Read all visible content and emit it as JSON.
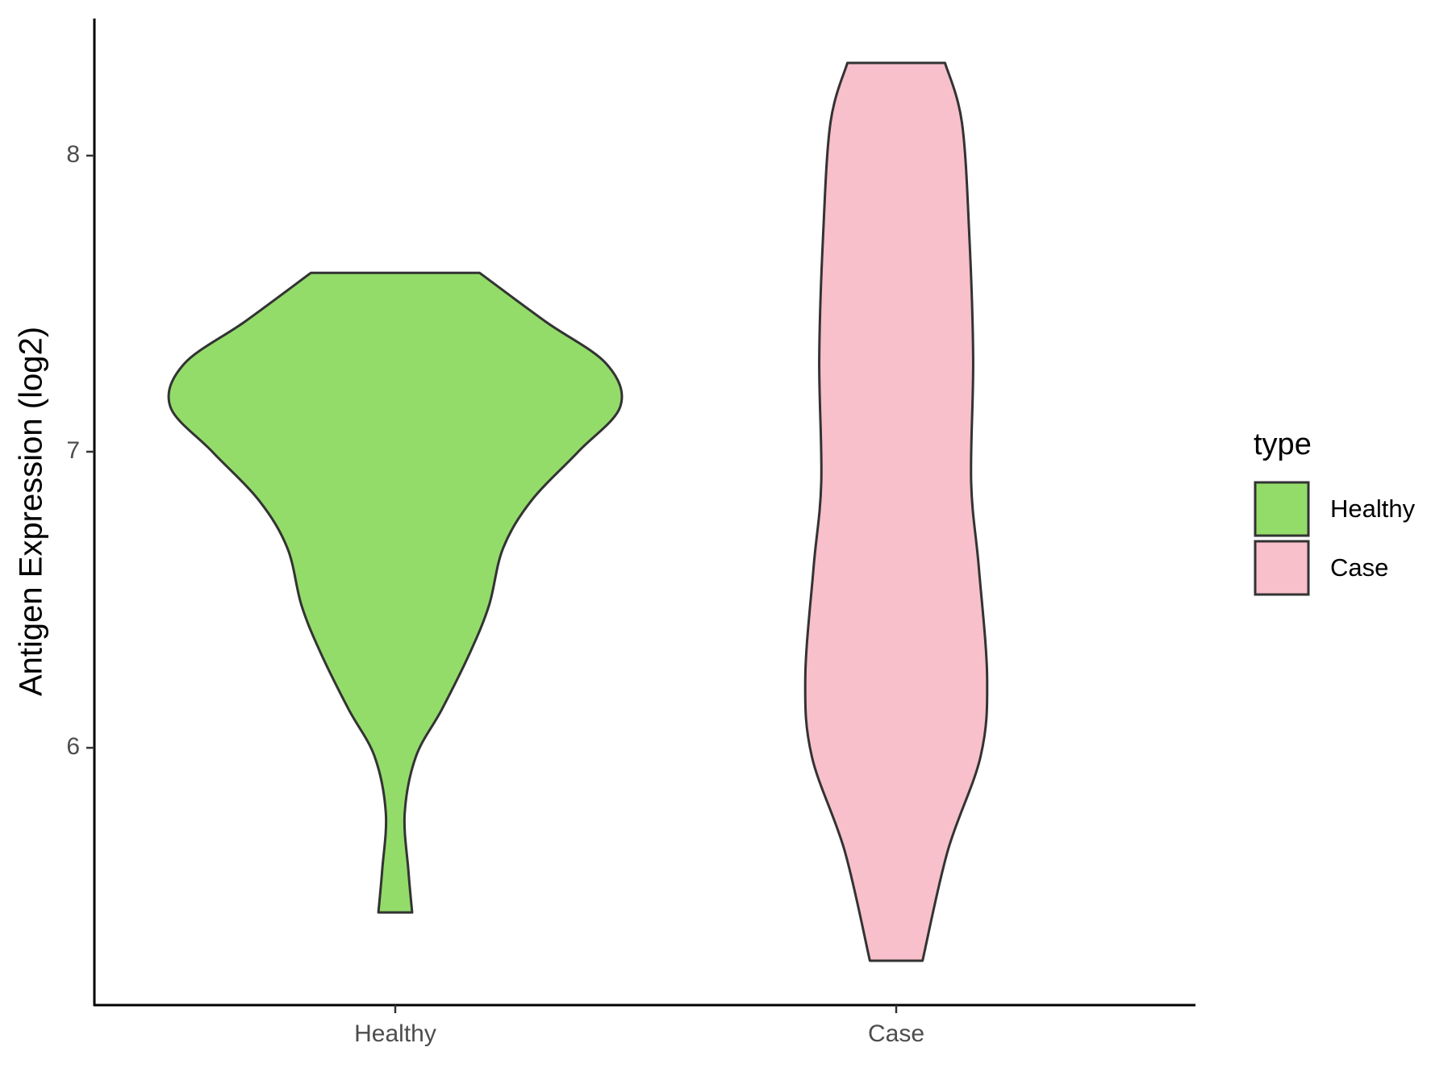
{
  "chart_data": {
    "type": "violin",
    "y_label": "Antigen Expression (log2)",
    "categories": [
      "Healthy",
      "Case"
    ],
    "series": [
      {
        "name": "Healthy",
        "color": "#93dc6a",
        "y": [
          7.604,
          7.44,
          7.297,
          7.153,
          7.0,
          6.834,
          6.674,
          6.482,
          6.323,
          6.131,
          5.971,
          5.78,
          5.588,
          5.444
        ],
        "density": [
          0.375,
          0.667,
          0.938,
          1,
          0.813,
          0.604,
          0.479,
          0.417,
          0.333,
          0.208,
          0.092,
          0.042,
          0.058,
          0.075
        ]
      },
      {
        "name": "Case",
        "color": "#f7c0cb",
        "y": [
          8.313,
          8.112,
          7.728,
          7.313,
          6.898,
          6.61,
          6.236,
          5.971,
          5.652,
          5.281
        ],
        "density": [
          0.217,
          0.292,
          0.325,
          0.342,
          0.333,
          0.367,
          0.404,
          0.375,
          0.229,
          0.117
        ]
      }
    ],
    "ylim": [
      5.131,
      8.463
    ],
    "yticks": [
      6,
      7,
      8
    ],
    "legend_title": "type",
    "legend_position": "right"
  }
}
